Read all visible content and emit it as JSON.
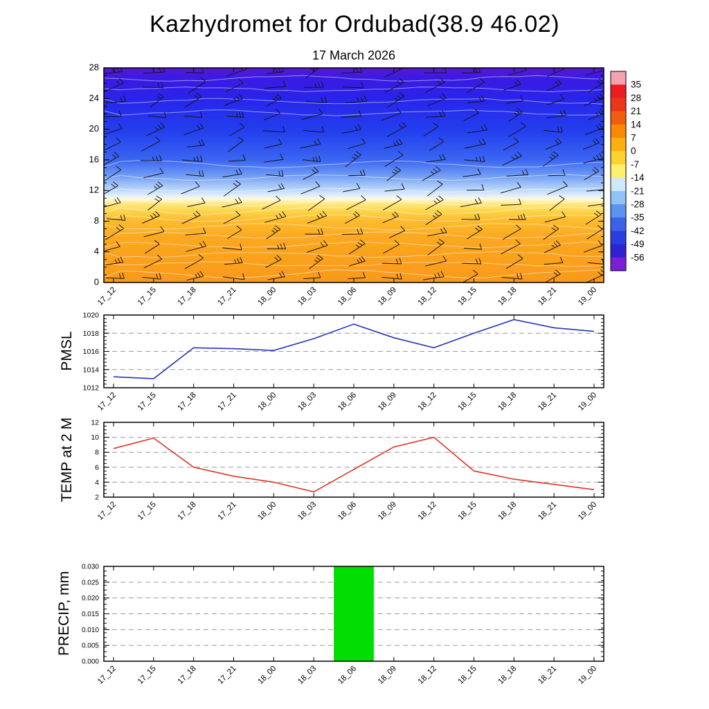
{
  "title": "Kazhydromet for Ordubad(38.9 46.02)",
  "subtitle": "17 March 2026",
  "times": [
    "17_12",
    "17_15",
    "17_18",
    "17_21",
    "18_00",
    "18_03",
    "18_06",
    "18_09",
    "18_12",
    "18_15",
    "18_18",
    "18_21",
    "19_00"
  ],
  "colors": {
    "pmsl_line": "#2233bb",
    "temp_line": "#dd3322",
    "precip_bar": "#00dd00",
    "frame": "#000000",
    "grid": "#999999",
    "barb": "#151515",
    "contour": "#ffffff"
  },
  "colorbar": {
    "labels": [
      35,
      28,
      21,
      14,
      7,
      0,
      -7,
      -14,
      -21,
      -28,
      -35,
      -42,
      -49,
      -56
    ],
    "bands": [
      "#f4a2b0",
      "#ec1c24",
      "#e8381c",
      "#f25c10",
      "#f98708",
      "#fcaf12",
      "#fdd22e",
      "#fdf06e",
      "#cfe9fb",
      "#8fc3f6",
      "#5b93f0",
      "#3a63e8",
      "#2a3ee0",
      "#2f22cf",
      "#7a1fd6"
    ]
  },
  "chart_data": [
    {
      "type": "heatmap",
      "name": "temperature-wind-cross-section",
      "title": "17 March 2026",
      "categories": [
        "17_12",
        "17_15",
        "17_18",
        "17_21",
        "18_00",
        "18_03",
        "18_06",
        "18_09",
        "18_12",
        "18_15",
        "18_18",
        "18_21",
        "19_00"
      ],
      "ylim": [
        0,
        28
      ],
      "yticks": [
        0,
        4,
        8,
        12,
        16,
        20,
        24,
        28
      ],
      "colorbar_ticks": [
        35,
        28,
        21,
        14,
        7,
        0,
        -7,
        -14,
        -21,
        -28,
        -35,
        -42,
        -49,
        -56
      ],
      "overlay": "wind barbs",
      "legend_position": "right",
      "gradient_semantics": "warm orange near surface through yellow/white band near 11, light blue 12-14, deep blue 16-26, purple near top"
    },
    {
      "type": "line",
      "name": "PMSL",
      "categories": [
        "17_12",
        "17_15",
        "17_18",
        "17_21",
        "18_00",
        "18_03",
        "18_06",
        "18_09",
        "18_12",
        "18_15",
        "18_18",
        "18_21",
        "19_00"
      ],
      "ylim": [
        1012,
        1020
      ],
      "yticks": [
        1012,
        1014,
        1016,
        1018,
        1020
      ],
      "values": [
        1013.2,
        1013.0,
        1016.4,
        1016.3,
        1016.1,
        1017.4,
        1019.0,
        1017.5,
        1016.4,
        1018.0,
        1019.5,
        1018.6,
        1018.2
      ]
    },
    {
      "type": "line",
      "name": "TEMP at 2 M",
      "categories": [
        "17_12",
        "17_15",
        "17_18",
        "17_21",
        "18_00",
        "18_03",
        "18_06",
        "18_09",
        "18_12",
        "18_15",
        "18_18",
        "18_21",
        "19_00"
      ],
      "ylim": [
        2,
        12
      ],
      "yticks": [
        2,
        4,
        6,
        8,
        10,
        12
      ],
      "values": [
        8.5,
        9.9,
        6.0,
        4.8,
        4.0,
        2.7,
        5.7,
        8.7,
        10.0,
        5.5,
        4.4,
        3.7,
        3.0
      ]
    },
    {
      "type": "bar",
      "name": "PRECIP, mm",
      "categories": [
        "17_12",
        "17_15",
        "17_18",
        "17_21",
        "18_00",
        "18_03",
        "18_06",
        "18_09",
        "18_12",
        "18_15",
        "18_18",
        "18_21",
        "19_00"
      ],
      "ylim": [
        0,
        0.03
      ],
      "yticks": [
        0.0,
        0.005,
        0.01,
        0.015,
        0.02,
        0.025,
        0.03
      ],
      "values": [
        0,
        0,
        0,
        0,
        0,
        0,
        0.03,
        0,
        0,
        0,
        0,
        0,
        0
      ]
    }
  ]
}
